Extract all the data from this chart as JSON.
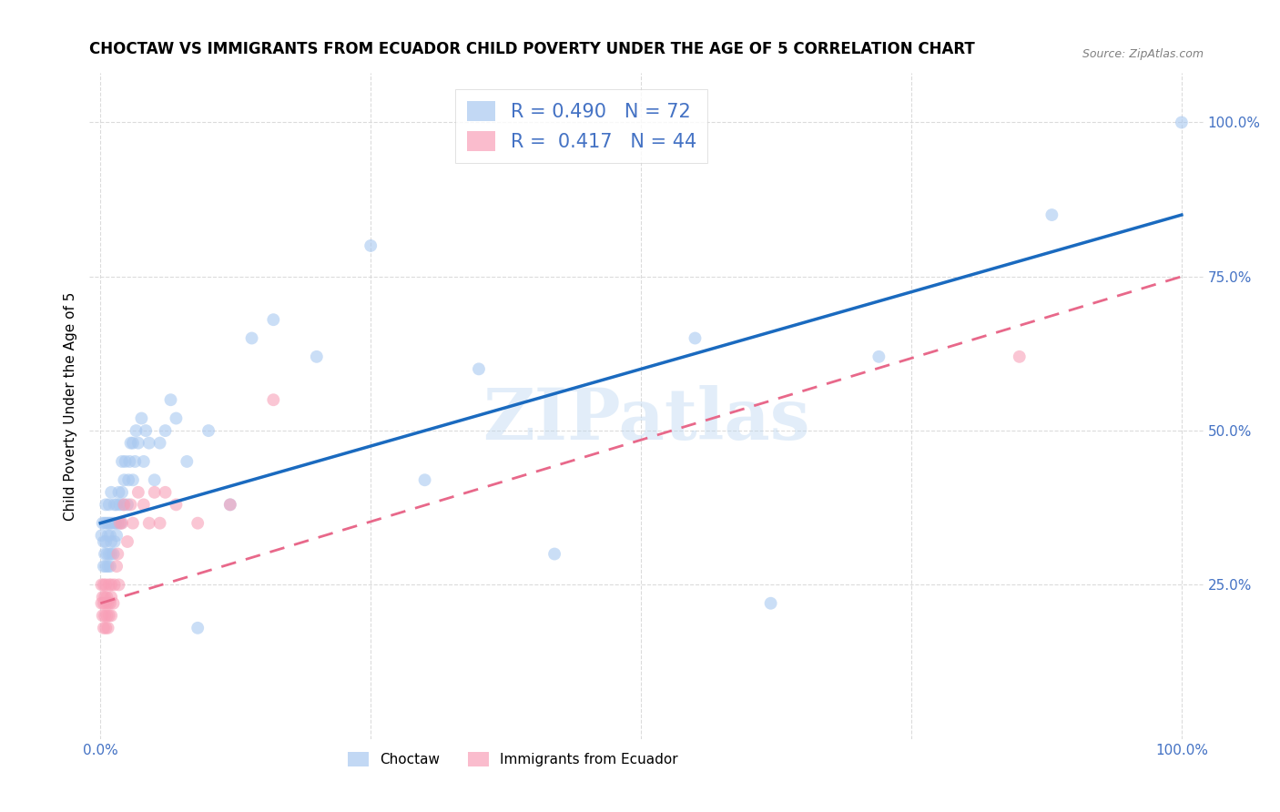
{
  "title": "CHOCTAW VS IMMIGRANTS FROM ECUADOR CHILD POVERTY UNDER THE AGE OF 5 CORRELATION CHART",
  "source": "Source: ZipAtlas.com",
  "ylabel": "Child Poverty Under the Age of 5",
  "legend_label1": "Choctaw",
  "legend_label2": "Immigrants from Ecuador",
  "r1": 0.49,
  "n1": 72,
  "r2": 0.417,
  "n2": 44,
  "color_blue": "#a8c8f0",
  "color_pink": "#f8a0b8",
  "line_blue": "#1a6abf",
  "line_pink": "#e8688a",
  "watermark": "ZIPatlas",
  "choctaw_x": [
    0.001,
    0.002,
    0.003,
    0.003,
    0.004,
    0.004,
    0.005,
    0.005,
    0.005,
    0.006,
    0.006,
    0.007,
    0.007,
    0.008,
    0.008,
    0.008,
    0.009,
    0.009,
    0.01,
    0.01,
    0.01,
    0.01,
    0.012,
    0.012,
    0.013,
    0.013,
    0.014,
    0.015,
    0.015,
    0.016,
    0.017,
    0.018,
    0.019,
    0.02,
    0.02,
    0.021,
    0.022,
    0.023,
    0.025,
    0.026,
    0.027,
    0.028,
    0.03,
    0.03,
    0.032,
    0.033,
    0.035,
    0.038,
    0.04,
    0.042,
    0.045,
    0.05,
    0.055,
    0.06,
    0.065,
    0.07,
    0.08,
    0.09,
    0.1,
    0.12,
    0.14,
    0.16,
    0.2,
    0.25,
    0.3,
    0.35,
    0.42,
    0.55,
    0.62,
    0.72,
    0.88,
    1.0
  ],
  "choctaw_y": [
    0.33,
    0.35,
    0.28,
    0.32,
    0.3,
    0.35,
    0.28,
    0.32,
    0.38,
    0.3,
    0.35,
    0.28,
    0.33,
    0.3,
    0.35,
    0.38,
    0.28,
    0.33,
    0.3,
    0.32,
    0.35,
    0.4,
    0.3,
    0.35,
    0.32,
    0.38,
    0.35,
    0.33,
    0.38,
    0.35,
    0.4,
    0.38,
    0.35,
    0.4,
    0.45,
    0.38,
    0.42,
    0.45,
    0.38,
    0.42,
    0.45,
    0.48,
    0.42,
    0.48,
    0.45,
    0.5,
    0.48,
    0.52,
    0.45,
    0.5,
    0.48,
    0.42,
    0.48,
    0.5,
    0.55,
    0.52,
    0.45,
    0.18,
    0.5,
    0.38,
    0.65,
    0.68,
    0.62,
    0.8,
    0.42,
    0.6,
    0.3,
    0.65,
    0.22,
    0.62,
    0.85,
    1.0
  ],
  "ecuador_x": [
    0.001,
    0.001,
    0.002,
    0.002,
    0.003,
    0.003,
    0.003,
    0.004,
    0.004,
    0.005,
    0.005,
    0.005,
    0.006,
    0.006,
    0.007,
    0.007,
    0.008,
    0.008,
    0.009,
    0.01,
    0.01,
    0.01,
    0.012,
    0.013,
    0.015,
    0.016,
    0.017,
    0.018,
    0.02,
    0.022,
    0.025,
    0.028,
    0.03,
    0.035,
    0.04,
    0.045,
    0.05,
    0.055,
    0.06,
    0.07,
    0.09,
    0.12,
    0.16,
    0.85
  ],
  "ecuador_y": [
    0.22,
    0.25,
    0.2,
    0.23,
    0.18,
    0.22,
    0.25,
    0.2,
    0.23,
    0.18,
    0.22,
    0.25,
    0.2,
    0.23,
    0.18,
    0.22,
    0.2,
    0.25,
    0.22,
    0.2,
    0.23,
    0.25,
    0.22,
    0.25,
    0.28,
    0.3,
    0.25,
    0.35,
    0.35,
    0.38,
    0.32,
    0.38,
    0.35,
    0.4,
    0.38,
    0.35,
    0.4,
    0.35,
    0.4,
    0.38,
    0.35,
    0.38,
    0.55,
    0.62
  ],
  "xlim": [
    -0.01,
    1.02
  ],
  "ylim": [
    0.0,
    1.08
  ],
  "xticks": [
    0.0,
    0.25,
    0.5,
    0.75,
    1.0
  ],
  "yticks": [
    0.25,
    0.5,
    0.75,
    1.0
  ],
  "xticklabels": [
    "0.0%",
    "",
    "",
    "",
    "100.0%"
  ],
  "yticklabels": [
    "25.0%",
    "50.0%",
    "75.0%",
    "100.0%"
  ],
  "line_blue_start_y": 0.35,
  "line_blue_end_y": 0.85,
  "line_pink_start_y": 0.22,
  "line_pink_end_y": 0.75
}
